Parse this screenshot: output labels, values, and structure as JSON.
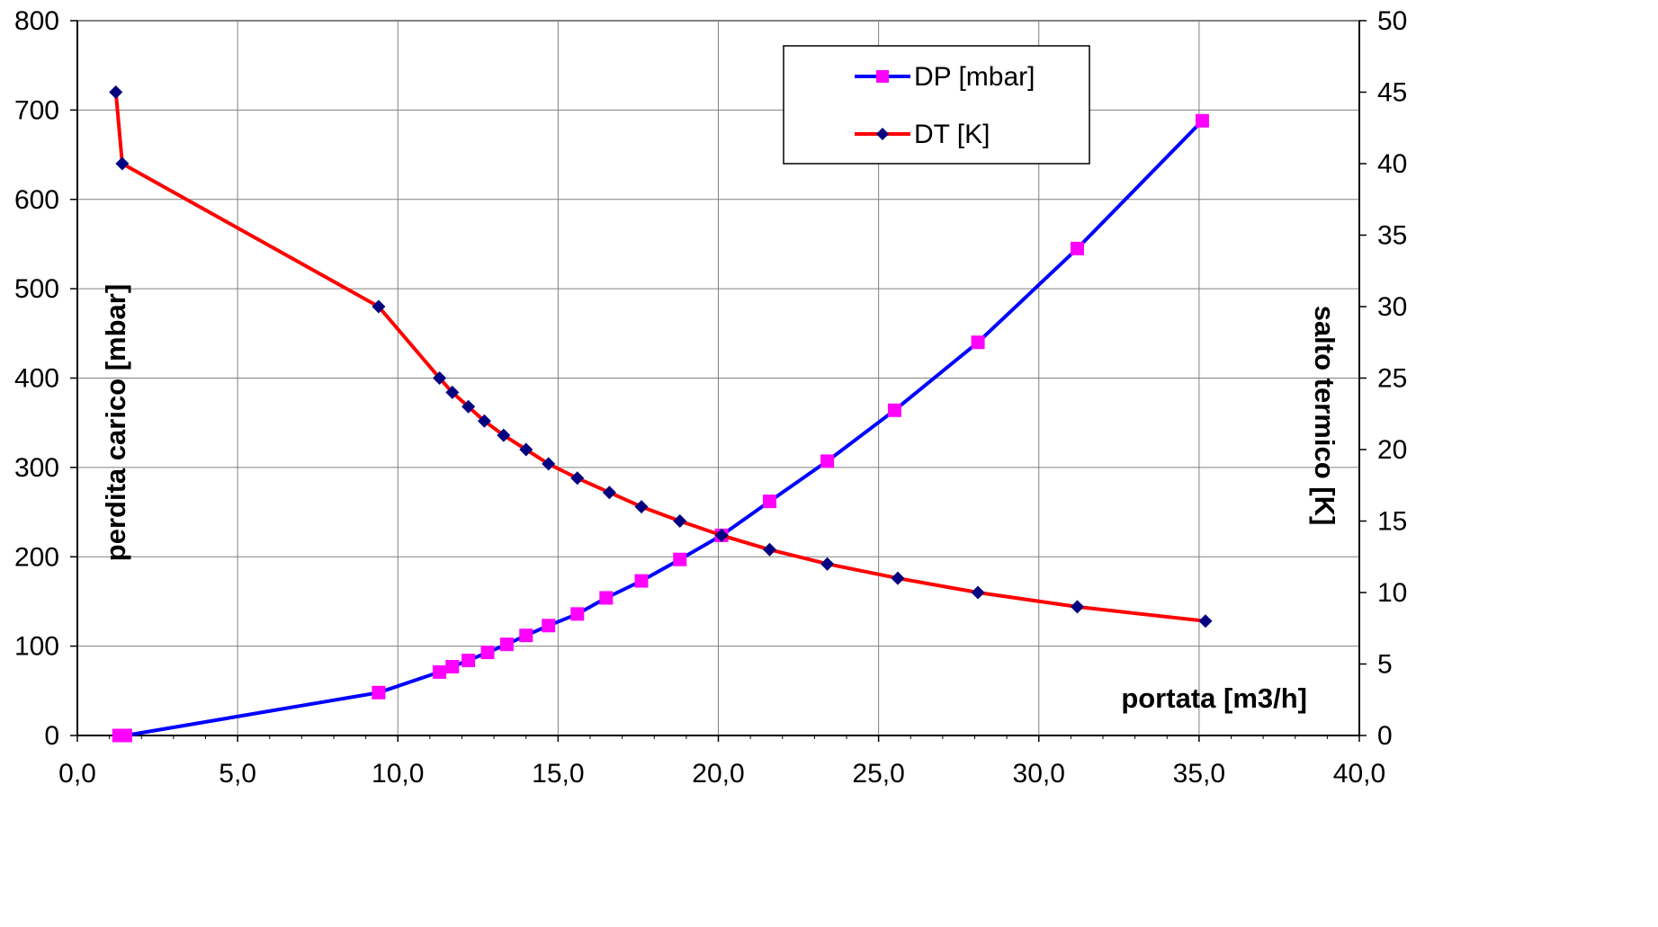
{
  "chart_data": {
    "type": "line",
    "xlabel": "portata [m3/h]",
    "ylabel": "perdita carico [mbar]",
    "y2label": "salto termico [K]",
    "xlim": [
      0,
      40
    ],
    "ylim": [
      0,
      800
    ],
    "y2lim": [
      0,
      50
    ],
    "x_ticks": [
      "0,0",
      "5,0",
      "10,0",
      "15,0",
      "20,0",
      "25,0",
      "30,0",
      "35,0",
      "40,0"
    ],
    "y_ticks": [
      "0",
      "100",
      "200",
      "300",
      "400",
      "500",
      "600",
      "700",
      "800"
    ],
    "y2_ticks": [
      "0",
      "5",
      "10",
      "15",
      "20",
      "25",
      "30",
      "35",
      "40",
      "45",
      "50"
    ],
    "grid": true,
    "legend_position": "top-right",
    "series": [
      {
        "name": "DP [mbar]",
        "axis": "left",
        "line_color": "#0000ff",
        "marker": "square",
        "marker_color": "#ff00ff",
        "x": [
          1.3,
          1.5,
          9.4,
          11.3,
          11.7,
          12.2,
          12.8,
          13.4,
          14.0,
          14.7,
          15.6,
          16.5,
          17.6,
          18.8,
          20.1,
          21.6,
          23.4,
          25.5,
          28.1,
          31.2,
          35.1
        ],
        "y": [
          0,
          0,
          48,
          71,
          77,
          84,
          93,
          102,
          112,
          123,
          136,
          154,
          173,
          197,
          224,
          262,
          307,
          364,
          440,
          545,
          688
        ]
      },
      {
        "name": "DT [K]",
        "axis": "right",
        "line_color": "#ff0000",
        "marker": "diamond",
        "marker_color": "#000080",
        "x": [
          1.2,
          1.4,
          9.4,
          11.3,
          11.7,
          12.2,
          12.7,
          13.3,
          14.0,
          14.7,
          15.6,
          16.6,
          17.6,
          18.8,
          20.1,
          21.6,
          23.4,
          25.6,
          28.1,
          31.2,
          35.2
        ],
        "y": [
          45,
          40,
          30,
          25,
          24,
          23,
          22,
          21,
          20,
          19,
          18,
          17,
          16,
          15,
          14,
          13,
          12,
          11,
          10,
          9,
          8
        ]
      }
    ]
  }
}
